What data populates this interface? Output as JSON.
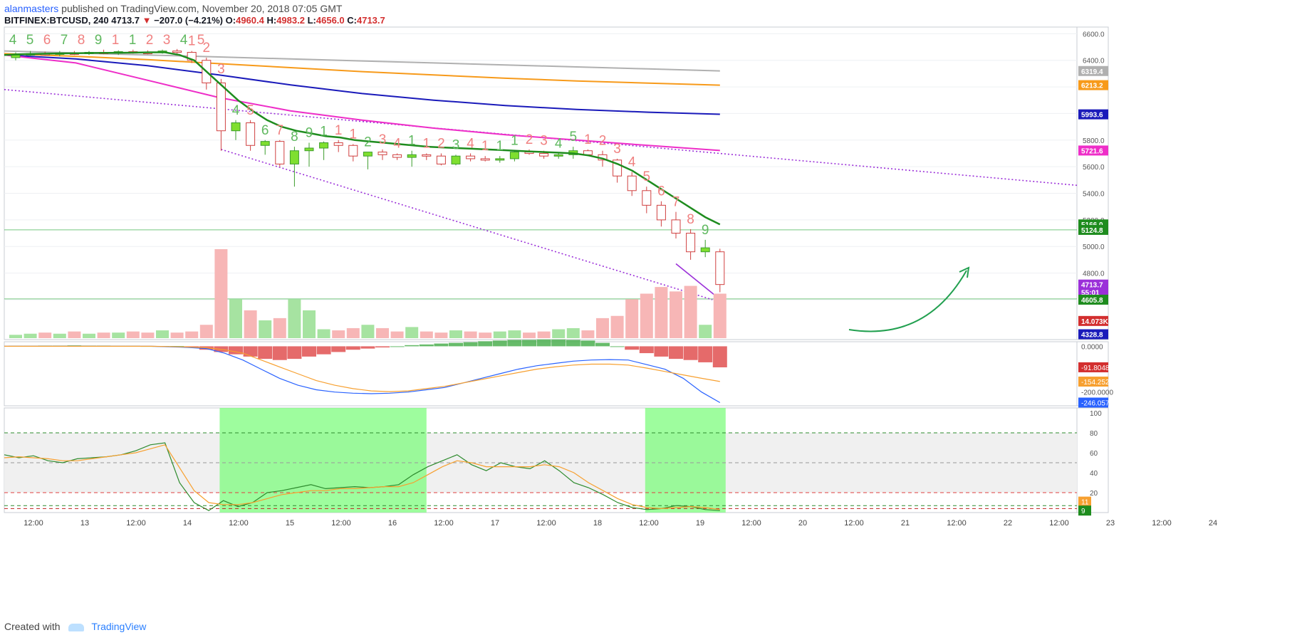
{
  "header": {
    "author": "alanmasters",
    "published_text": "published on TradingView.com, November 20, 2018 07:05 GMT",
    "symbol": "BITFINEX:BTCUSD, 240",
    "last": "4713.7",
    "change_arrow": "▼",
    "change": "−207.0 (−4.21%)",
    "o_label": "O:",
    "o": "4960.4",
    "h_label": "H:",
    "h": "4983.2",
    "l_label": "L:",
    "l": "4656.0",
    "c_label": "C:",
    "c": "4713.7"
  },
  "footer": {
    "created_with": "Created with",
    "brand": "TradingView"
  },
  "colors": {
    "up": "#7fdf2f",
    "down": "#e04848",
    "ma_green": "#1e8c1e",
    "ma_gray": "#b0b0b0",
    "ma_orange": "#f79a1a",
    "ma_blue": "#1a1aba",
    "ma_magenta": "#ee2ec8",
    "trend": "#9b30d9",
    "support": "#3ab04a",
    "macd_fast": "#2962ff",
    "macd_slow": "#f7a030"
  },
  "chart_data": {
    "type": "candlestick",
    "price_axis": {
      "ylim": [
        4300,
        6650
      ],
      "ticks": [
        "6600.0",
        "6400.0",
        "6200.0",
        "6000.0",
        "5800.0",
        "5600.0",
        "5400.0",
        "5200.0",
        "5000.0",
        "4800.0",
        "4600.0"
      ],
      "labels": [
        {
          "text": "6319.4",
          "value": 6319.4,
          "color": "#b0b0b0"
        },
        {
          "text": "6213.2",
          "value": 6213.2,
          "color": "#f79a1a"
        },
        {
          "text": "5993.6",
          "value": 5993.6,
          "color": "#1a1aba"
        },
        {
          "text": "5721.6",
          "value": 5721.6,
          "color": "#ee2ec8"
        },
        {
          "text": "5166.0",
          "value": 5166.0,
          "color": "#1e8c1e"
        },
        {
          "text": "5124.8",
          "value": 5124.8,
          "color": "#1e8c1e"
        },
        {
          "text": "4713.7",
          "value": 4713.7,
          "color": "#9b30d9"
        },
        {
          "text": "55:01",
          "value": 4655,
          "color": "#9b30d9"
        },
        {
          "text": "4605.8",
          "value": 4600,
          "color": "#1e8c1e"
        },
        {
          "text": "14.073K",
          "value": 4440,
          "color": "#d32f2f"
        },
        {
          "text": "4328.8",
          "value": 4340,
          "color": "#1a1aba"
        }
      ]
    },
    "x_axis": {
      "ticks": [
        "12:00",
        "13",
        "12:00",
        "14",
        "12:00",
        "15",
        "12:00",
        "16",
        "12:00",
        "17",
        "12:00",
        "18",
        "12:00",
        "19",
        "12:00",
        "20",
        "12:00",
        "21",
        "12:00",
        "22",
        "12:00",
        "23",
        "12:00",
        "24"
      ]
    },
    "candles": [
      [
        6420,
        6460,
        6400,
        6440
      ],
      [
        6440,
        6470,
        6430,
        6450
      ],
      [
        6450,
        6465,
        6435,
        6445
      ],
      [
        6445,
        6470,
        6430,
        6455
      ],
      [
        6455,
        6470,
        6440,
        6450
      ],
      [
        6450,
        6470,
        6440,
        6460
      ],
      [
        6460,
        6480,
        6445,
        6455
      ],
      [
        6455,
        6475,
        6440,
        6465
      ],
      [
        6465,
        6480,
        6450,
        6460
      ],
      [
        6460,
        6475,
        6445,
        6458
      ],
      [
        6458,
        6480,
        6450,
        6470
      ],
      [
        6470,
        6485,
        6450,
        6460
      ],
      [
        6460,
        6470,
        6380,
        6400
      ],
      [
        6400,
        6420,
        6180,
        6230
      ],
      [
        6230,
        6260,
        5720,
        5870
      ],
      [
        5870,
        5950,
        5800,
        5930
      ],
      [
        5930,
        5950,
        5720,
        5760
      ],
      [
        5760,
        5800,
        5690,
        5790
      ],
      [
        5790,
        5800,
        5600,
        5620
      ],
      [
        5620,
        5750,
        5450,
        5720
      ],
      [
        5720,
        5780,
        5600,
        5740
      ],
      [
        5740,
        5790,
        5650,
        5780
      ],
      [
        5780,
        5800,
        5710,
        5760
      ],
      [
        5760,
        5770,
        5640,
        5680
      ],
      [
        5680,
        5710,
        5580,
        5710
      ],
      [
        5710,
        5730,
        5650,
        5690
      ],
      [
        5690,
        5700,
        5650,
        5670
      ],
      [
        5670,
        5720,
        5600,
        5690
      ],
      [
        5690,
        5700,
        5650,
        5680
      ],
      [
        5680,
        5700,
        5610,
        5620
      ],
      [
        5620,
        5690,
        5610,
        5680
      ],
      [
        5680,
        5700,
        5640,
        5660
      ],
      [
        5660,
        5680,
        5640,
        5650
      ],
      [
        5650,
        5680,
        5630,
        5660
      ],
      [
        5660,
        5720,
        5640,
        5710
      ],
      [
        5710,
        5730,
        5690,
        5700
      ],
      [
        5700,
        5720,
        5660,
        5680
      ],
      [
        5680,
        5700,
        5660,
        5690
      ],
      [
        5690,
        5750,
        5660,
        5720
      ],
      [
        5720,
        5730,
        5680,
        5690
      ],
      [
        5690,
        5720,
        5600,
        5650
      ],
      [
        5650,
        5660,
        5480,
        5530
      ],
      [
        5530,
        5560,
        5380,
        5420
      ],
      [
        5420,
        5450,
        5250,
        5310
      ],
      [
        5310,
        5340,
        5150,
        5200
      ],
      [
        5200,
        5260,
        5060,
        5100
      ],
      [
        5100,
        5130,
        4900,
        4960
      ],
      [
        4960,
        5050,
        4920,
        4990
      ],
      [
        4960,
        4983,
        4656,
        4714
      ]
    ],
    "moving_averages": [
      {
        "name": "ma_green",
        "values": [
          6440,
          6445,
          6448,
          6450,
          6452,
          6453,
          6455,
          6456,
          6457,
          6458,
          6460,
          6460,
          6440,
          6400,
          6300,
          6200,
          6100,
          6020,
          5950,
          5900,
          5870,
          5850,
          5830,
          5820,
          5800,
          5790,
          5780,
          5770,
          5760,
          5750,
          5745,
          5740,
          5735,
          5730,
          5725,
          5720,
          5715,
          5710,
          5705,
          5700,
          5685,
          5660,
          5620,
          5570,
          5500,
          5430,
          5360,
          5290,
          5220,
          5166
        ]
      },
      {
        "name": "ma_gray",
        "values": [
          6470,
          6455,
          6440,
          6425,
          6410,
          6395,
          6380,
          6365,
          6350,
          6335,
          6320
        ]
      },
      {
        "name": "ma_orange",
        "values": [
          6450,
          6430,
          6405,
          6375,
          6345,
          6315,
          6290,
          6265,
          6245,
          6228,
          6213
        ]
      },
      {
        "name": "ma_blue",
        "values": [
          6440,
          6410,
          6360,
          6290,
          6215,
          6150,
          6100,
          6060,
          6030,
          6010,
          5994
        ]
      },
      {
        "name": "ma_magenta",
        "values": [
          6440,
          6380,
          6250,
          6120,
          6020,
          5950,
          5890,
          5840,
          5800,
          5760,
          5722
        ]
      }
    ],
    "td_sequential_labels": [
      "4",
      "5",
      "6",
      "7",
      "8",
      "9",
      "1",
      "1",
      "2",
      "3",
      "4",
      "5",
      "1",
      "2",
      "3",
      "4",
      "5",
      "6",
      "7",
      "8",
      "9",
      "1",
      "1",
      "1",
      "2",
      "3",
      "4",
      "1",
      "1",
      "2",
      "3",
      "4",
      "1",
      "1",
      "1",
      "2",
      "3",
      "4",
      "5",
      "1",
      "2",
      "3",
      "4",
      "5",
      "6",
      "7",
      "8",
      "9"
    ],
    "volume": [
      3,
      4,
      5,
      4,
      6,
      4,
      5,
      5,
      6,
      5,
      7,
      5,
      6,
      12,
      80,
      35,
      25,
      16,
      18,
      35,
      25,
      8,
      7,
      9,
      12,
      9,
      6,
      10,
      6,
      5,
      7,
      6,
      5,
      6,
      7,
      5,
      6,
      8,
      9,
      7,
      18,
      20,
      35,
      40,
      46,
      42,
      47,
      12,
      40
    ],
    "macd": {
      "range": [
        -260,
        20
      ],
      "histogram": [
        2,
        2,
        3,
        3,
        4,
        3,
        3,
        2,
        2,
        1,
        1,
        1,
        -5,
        -15,
        -25,
        -35,
        -45,
        -55,
        -60,
        -55,
        -45,
        -35,
        -25,
        -15,
        -10,
        -5,
        0,
        5,
        8,
        12,
        15,
        18,
        22,
        25,
        28,
        28,
        30,
        30,
        28,
        25,
        15,
        0,
        -15,
        -30,
        -45,
        -55,
        -60,
        -70,
        -92
      ],
      "fast": [
        0,
        0,
        0,
        0,
        0,
        0,
        0,
        0,
        0,
        -2,
        -5,
        -10,
        -30,
        -60,
        -100,
        -140,
        -170,
        -190,
        -200,
        -205,
        -207,
        -205,
        -200,
        -190,
        -180,
        -160,
        -140,
        -120,
        -100,
        -85,
        -75,
        -65,
        -60,
        -58,
        -60,
        -80,
        -100,
        -140,
        -200,
        -246
      ],
      "slow": [
        0,
        0,
        0,
        0,
        0,
        0,
        0,
        0,
        0,
        -1,
        -3,
        -6,
        -15,
        -30,
        -60,
        -90,
        -120,
        -150,
        -170,
        -185,
        -195,
        -198,
        -195,
        -185,
        -175,
        -160,
        -145,
        -130,
        -115,
        -100,
        -90,
        -82,
        -78,
        -78,
        -82,
        -95,
        -110,
        -125,
        -140,
        -154
      ],
      "labels": [
        {
          "text": "0.0000",
          "kind": "tick"
        },
        {
          "text": "-91.8048",
          "kind": "badge",
          "color": "#d32f2f"
        },
        {
          "text": "-154.2528",
          "kind": "badge",
          "color": "#f7a030"
        },
        {
          "text": "-200.0000",
          "kind": "tick"
        },
        {
          "text": "-246.0575",
          "kind": "badge",
          "color": "#2962ff"
        }
      ]
    },
    "stoch": {
      "range": [
        0,
        105
      ],
      "ticks": [
        "100",
        "80",
        "60",
        "40",
        "20"
      ],
      "bands": [
        80,
        20,
        50
      ],
      "k": [
        58,
        55,
        57,
        52,
        50,
        54,
        55,
        56,
        58,
        62,
        68,
        70,
        30,
        10,
        2,
        12,
        6,
        10,
        20,
        22,
        25,
        28,
        24,
        25,
        26,
        25,
        26,
        28,
        38,
        46,
        52,
        58,
        48,
        42,
        50,
        46,
        44,
        52,
        42,
        30,
        25,
        18,
        10,
        5,
        3,
        4,
        7,
        6,
        3,
        2
      ],
      "d": [
        55,
        56,
        55,
        54,
        52,
        52,
        54,
        56,
        58,
        60,
        64,
        68,
        45,
        22,
        10,
        8,
        8,
        10,
        14,
        18,
        20,
        22,
        22,
        24,
        24,
        25,
        26,
        26,
        30,
        38,
        46,
        52,
        50,
        46,
        46,
        46,
        46,
        48,
        46,
        40,
        30,
        22,
        14,
        8,
        5,
        4,
        5,
        6,
        5,
        3
      ],
      "badges": [
        {
          "text": "11",
          "color": "#f7a030"
        },
        {
          "text": "9",
          "color": "#1e8c1e"
        }
      ]
    }
  }
}
